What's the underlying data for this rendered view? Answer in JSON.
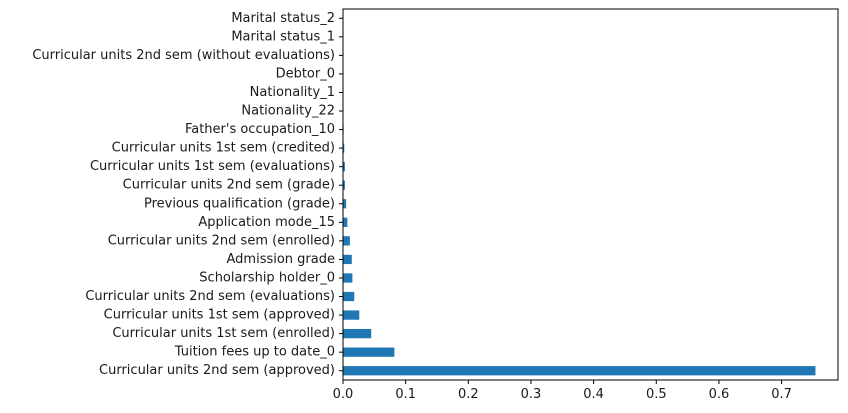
{
  "chart_data": {
    "type": "bar",
    "orientation": "horizontal",
    "title": "",
    "xlabel": "",
    "ylabel": "",
    "categories": [
      "Curricular units 2nd sem (approved)",
      "Tuition fees up to date_0",
      "Curricular units 1st sem (enrolled)",
      "Curricular units 1st sem (approved)",
      "Curricular units 2nd sem (evaluations)",
      "Scholarship holder_0",
      "Admission grade",
      "Curricular units 2nd sem (enrolled)",
      "Application mode_15",
      "Previous qualification (grade)",
      "Curricular units 2nd sem (grade)",
      "Curricular units 1st sem (evaluations)",
      "Curricular units 1st sem (credited)",
      "Father's occupation_10",
      "Nationality_22",
      "Nationality_1",
      "Debtor_0",
      "Curricular units 2nd sem (without evaluations)",
      "Marital status_1",
      "Marital status_2"
    ],
    "values": [
      0.754,
      0.082,
      0.045,
      0.026,
      0.018,
      0.015,
      0.014,
      0.011,
      0.007,
      0.005,
      0.003,
      0.003,
      0.002,
      0.001,
      0.0005,
      0.0004,
      0.0003,
      0.0002,
      0.0001,
      0.0001
    ],
    "xlim": [
      0,
      0.79
    ],
    "xticks": [
      "0.0",
      "0.1",
      "0.2",
      "0.3",
      "0.4",
      "0.5",
      "0.6",
      "0.7"
    ],
    "xtick_values": [
      0,
      0.1,
      0.2,
      0.3,
      0.4,
      0.5,
      0.6,
      0.7
    ],
    "bar_color": "#1f77b4",
    "grid": false
  }
}
